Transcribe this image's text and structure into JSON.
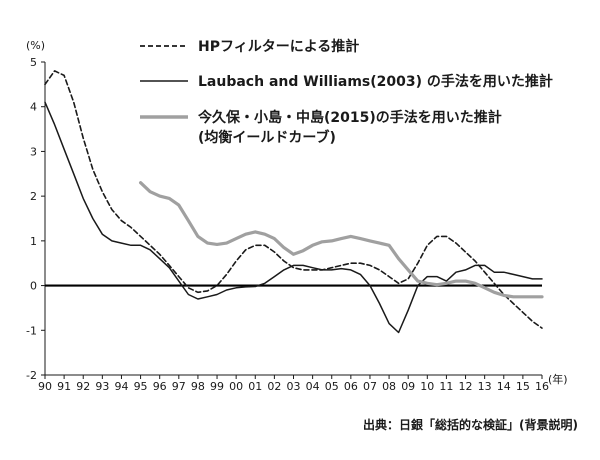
{
  "chart_data": {
    "type": "line",
    "ylabel_unit": "(%)",
    "xlabel_unit": "(年)",
    "ylim": [
      -2,
      5
    ],
    "y_ticks": [
      5,
      4,
      3,
      2,
      1,
      0,
      -1,
      -2
    ],
    "x_ticks": [
      "90",
      "91",
      "92",
      "93",
      "94",
      "95",
      "96",
      "97",
      "98",
      "99",
      "00",
      "01",
      "02",
      "03",
      "04",
      "05",
      "06",
      "07",
      "08",
      "09",
      "10",
      "11",
      "12",
      "13",
      "14",
      "15",
      "16"
    ],
    "legend": [
      "HPフィルターによる推計",
      "Laubach and Williams(2003) の手法を用いた推計",
      "今久保・小島・中島(2015)の手法を用いた推計",
      "(均衡イールドカーブ)"
    ],
    "series": [
      {
        "name": "HPフィルターによる推計",
        "style": "dashed",
        "color": "#1a1a1a",
        "points": [
          [
            1990,
            4.5
          ],
          [
            1990.5,
            4.8
          ],
          [
            1991,
            4.7
          ],
          [
            1991.5,
            4.1
          ],
          [
            1992,
            3.3
          ],
          [
            1992.5,
            2.6
          ],
          [
            1993,
            2.1
          ],
          [
            1993.5,
            1.7
          ],
          [
            1994,
            1.45
          ],
          [
            1994.5,
            1.3
          ],
          [
            1995,
            1.1
          ],
          [
            1995.5,
            0.9
          ],
          [
            1996,
            0.7
          ],
          [
            1996.5,
            0.45
          ],
          [
            1997,
            0.2
          ],
          [
            1997.5,
            -0.05
          ],
          [
            1998,
            -0.15
          ],
          [
            1998.5,
            -0.12
          ],
          [
            1999,
            0.0
          ],
          [
            1999.5,
            0.25
          ],
          [
            2000,
            0.55
          ],
          [
            2000.5,
            0.8
          ],
          [
            2001,
            0.9
          ],
          [
            2001.5,
            0.9
          ],
          [
            2002,
            0.75
          ],
          [
            2002.5,
            0.55
          ],
          [
            2003,
            0.4
          ],
          [
            2003.5,
            0.35
          ],
          [
            2004,
            0.35
          ],
          [
            2004.5,
            0.35
          ],
          [
            2005,
            0.4
          ],
          [
            2005.5,
            0.45
          ],
          [
            2006,
            0.5
          ],
          [
            2006.5,
            0.5
          ],
          [
            2007,
            0.45
          ],
          [
            2007.5,
            0.35
          ],
          [
            2008,
            0.2
          ],
          [
            2008.5,
            0.05
          ],
          [
            2009,
            0.15
          ],
          [
            2009.5,
            0.5
          ],
          [
            2010,
            0.9
          ],
          [
            2010.5,
            1.1
          ],
          [
            2011,
            1.1
          ],
          [
            2011.5,
            0.95
          ],
          [
            2012,
            0.75
          ],
          [
            2012.5,
            0.55
          ],
          [
            2013,
            0.3
          ],
          [
            2013.5,
            0.05
          ],
          [
            2014,
            -0.2
          ],
          [
            2014.5,
            -0.4
          ],
          [
            2015,
            -0.6
          ],
          [
            2015.5,
            -0.8
          ],
          [
            2016,
            -0.95
          ]
        ]
      },
      {
        "name": "Laubach and Williams(2003) の手法を用いた推計",
        "style": "solid",
        "color": "#1a1a1a",
        "points": [
          [
            1990,
            4.1
          ],
          [
            1990.5,
            3.6
          ],
          [
            1991,
            3.05
          ],
          [
            1991.5,
            2.5
          ],
          [
            1992,
            1.95
          ],
          [
            1992.5,
            1.5
          ],
          [
            1993,
            1.15
          ],
          [
            1993.5,
            1.0
          ],
          [
            1994,
            0.95
          ],
          [
            1994.5,
            0.9
          ],
          [
            1995,
            0.9
          ],
          [
            1995.5,
            0.8
          ],
          [
            1996,
            0.6
          ],
          [
            1996.5,
            0.4
          ],
          [
            1997,
            0.1
          ],
          [
            1997.5,
            -0.2
          ],
          [
            1998,
            -0.3
          ],
          [
            1998.5,
            -0.25
          ],
          [
            1999,
            -0.2
          ],
          [
            1999.5,
            -0.1
          ],
          [
            2000,
            -0.05
          ],
          [
            2000.5,
            -0.03
          ],
          [
            2001,
            -0.02
          ],
          [
            2001.5,
            0.05
          ],
          [
            2002,
            0.2
          ],
          [
            2002.5,
            0.35
          ],
          [
            2003,
            0.45
          ],
          [
            2003.5,
            0.45
          ],
          [
            2004,
            0.4
          ],
          [
            2004.5,
            0.35
          ],
          [
            2005,
            0.35
          ],
          [
            2005.5,
            0.38
          ],
          [
            2006,
            0.35
          ],
          [
            2006.5,
            0.25
          ],
          [
            2007,
            0.0
          ],
          [
            2007.5,
            -0.4
          ],
          [
            2008,
            -0.85
          ],
          [
            2008.5,
            -1.05
          ],
          [
            2009,
            -0.55
          ],
          [
            2009.5,
            0.0
          ],
          [
            2010,
            0.2
          ],
          [
            2010.5,
            0.2
          ],
          [
            2011,
            0.1
          ],
          [
            2011.5,
            0.3
          ],
          [
            2012,
            0.35
          ],
          [
            2012.5,
            0.45
          ],
          [
            2013,
            0.45
          ],
          [
            2013.5,
            0.3
          ],
          [
            2014,
            0.3
          ],
          [
            2014.5,
            0.25
          ],
          [
            2015,
            0.2
          ],
          [
            2015.5,
            0.15
          ],
          [
            2016,
            0.15
          ]
        ]
      },
      {
        "name": "今久保・小島・中島(2015)の手法を用いた推計",
        "style": "solid",
        "color": "#a0a0a0",
        "points": [
          [
            1995,
            2.3
          ],
          [
            1995.5,
            2.1
          ],
          [
            1996,
            2.0
          ],
          [
            1996.5,
            1.95
          ],
          [
            1997,
            1.8
          ],
          [
            1997.5,
            1.45
          ],
          [
            1998,
            1.1
          ],
          [
            1998.5,
            0.95
          ],
          [
            1999,
            0.92
          ],
          [
            1999.5,
            0.95
          ],
          [
            2000,
            1.05
          ],
          [
            2000.5,
            1.15
          ],
          [
            2001,
            1.2
          ],
          [
            2001.5,
            1.15
          ],
          [
            2002,
            1.05
          ],
          [
            2002.5,
            0.85
          ],
          [
            2003,
            0.7
          ],
          [
            2003.5,
            0.78
          ],
          [
            2004,
            0.9
          ],
          [
            2004.5,
            0.98
          ],
          [
            2005,
            1.0
          ],
          [
            2005.5,
            1.05
          ],
          [
            2006,
            1.1
          ],
          [
            2006.5,
            1.05
          ],
          [
            2007,
            1.0
          ],
          [
            2007.5,
            0.95
          ],
          [
            2008,
            0.9
          ],
          [
            2008.5,
            0.6
          ],
          [
            2009,
            0.35
          ],
          [
            2009.5,
            0.1
          ],
          [
            2010,
            0.05
          ],
          [
            2010.5,
            0.02
          ],
          [
            2011,
            0.05
          ],
          [
            2011.5,
            0.1
          ],
          [
            2012,
            0.1
          ],
          [
            2012.5,
            0.05
          ],
          [
            2013,
            -0.05
          ],
          [
            2013.5,
            -0.15
          ],
          [
            2014,
            -0.22
          ],
          [
            2014.5,
            -0.25
          ],
          [
            2015,
            -0.25
          ],
          [
            2015.5,
            -0.25
          ],
          [
            2016,
            -0.25
          ]
        ]
      }
    ]
  },
  "source_text": "出典：日銀「総括的な検証」(背景説明)"
}
